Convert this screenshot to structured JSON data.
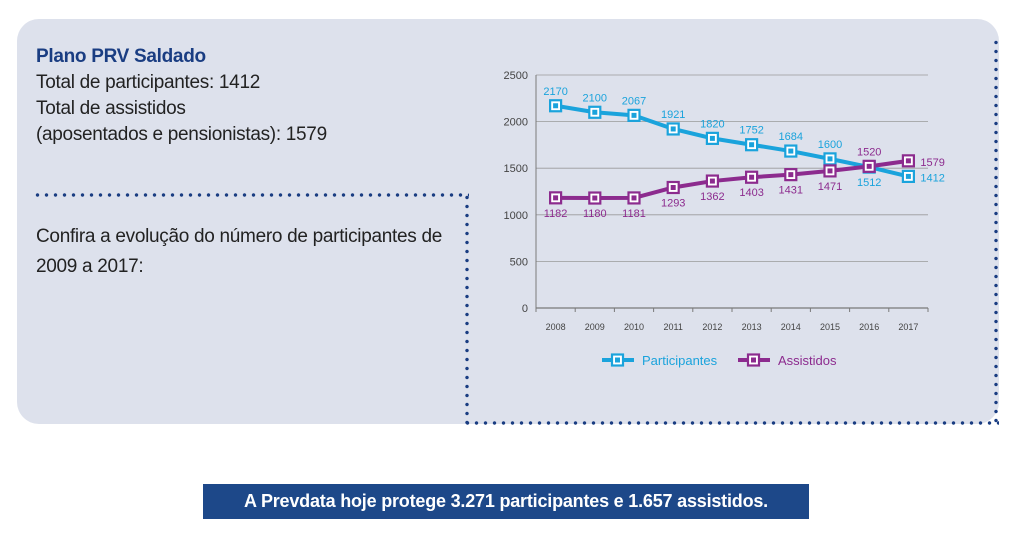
{
  "info": {
    "plan_title": "Plano PRV Saldado",
    "line1": "Total de participantes: 1412",
    "line2": "Total de assistidos",
    "line3": "(aposentados e pensionistas): 1579",
    "intro": "Confira a evolução do número de participantes de 2009 a 2017:"
  },
  "banner": {
    "text": "A Prevdata hoje protege 3.271 participantes e 1.657 assistidos."
  },
  "colors": {
    "participantes": "#1aa3dc",
    "assistidos": "#8c2b8e",
    "title": "#1a3d82",
    "card": "#dde1ec",
    "banner": "#1d4889"
  },
  "chart_data": {
    "type": "line",
    "x": [
      "2008",
      "2009",
      "2010",
      "2011",
      "2012",
      "2013",
      "2014",
      "2015",
      "2016",
      "2017"
    ],
    "series": [
      {
        "name": "Participantes",
        "values": [
          2170,
          2100,
          2067,
          1921,
          1820,
          1752,
          1684,
          1600,
          1512,
          1412
        ]
      },
      {
        "name": "Assistidos",
        "values": [
          1182,
          1180,
          1181,
          1293,
          1362,
          1403,
          1431,
          1471,
          1520,
          1579
        ]
      }
    ],
    "yticks": [
      0,
      500,
      1000,
      1500,
      2000,
      2500
    ],
    "ylim": [
      0,
      2500
    ],
    "grid": true,
    "legend": "bottom",
    "data_labels": true
  }
}
